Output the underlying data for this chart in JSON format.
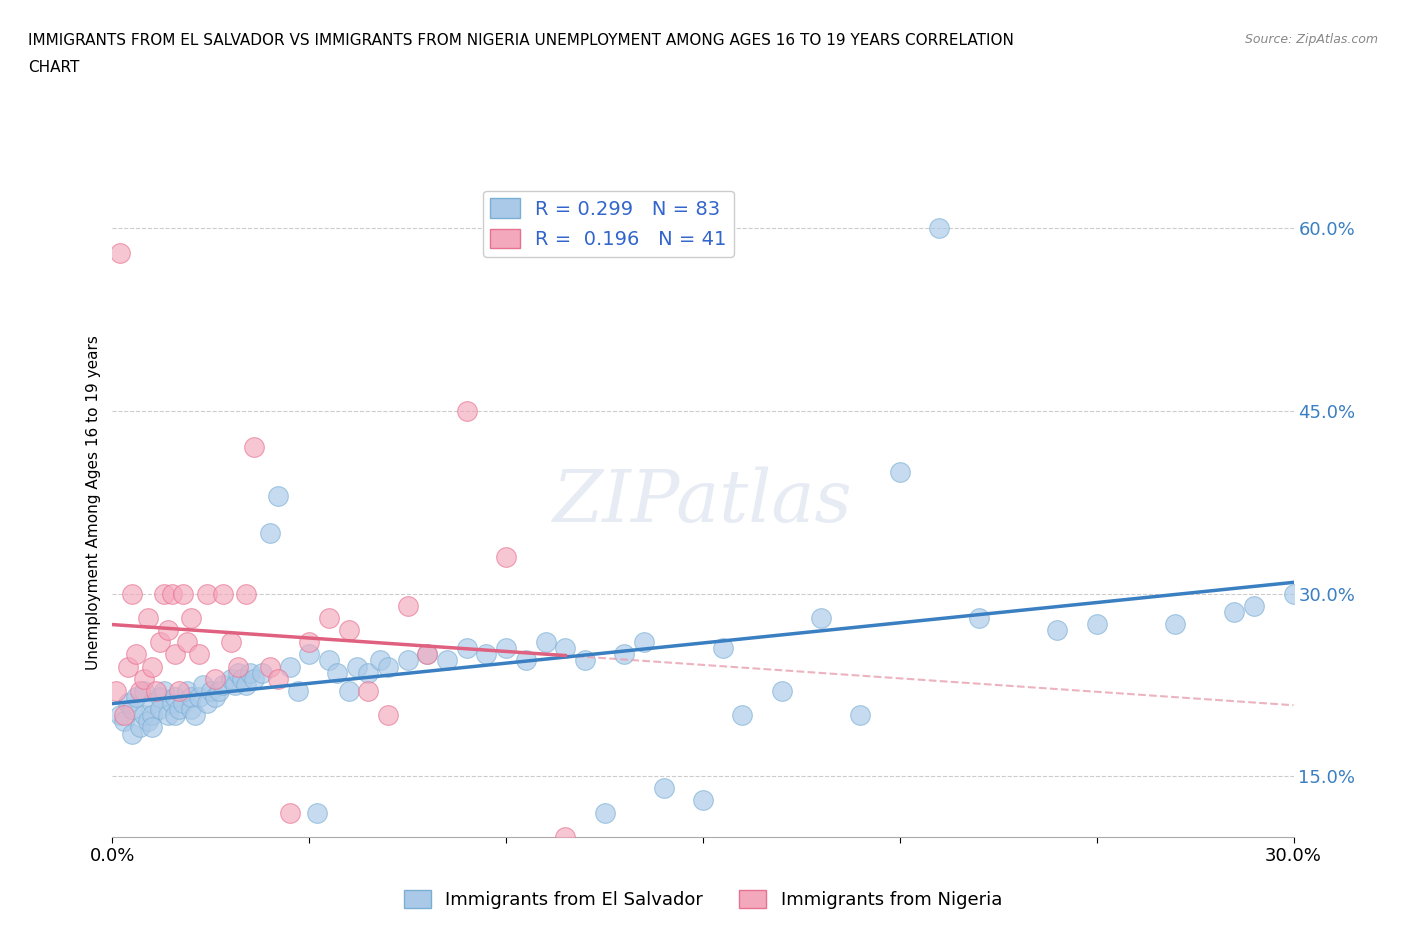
{
  "title_line1": "IMMIGRANTS FROM EL SALVADOR VS IMMIGRANTS FROM NIGERIA UNEMPLOYMENT AMONG AGES 16 TO 19 YEARS CORRELATION",
  "title_line2": "CHART",
  "source": "Source: ZipAtlas.com",
  "ylabel": "Unemployment Among Ages 16 to 19 years",
  "xlabel_salvador": "Immigrants from El Salvador",
  "xlabel_nigeria": "Immigrants from Nigeria",
  "R_salvador": 0.299,
  "N_salvador": 83,
  "R_nigeria": 0.196,
  "N_nigeria": 41,
  "color_salvador": "#aac9e8",
  "color_nigeria": "#f4a8bc",
  "edge_salvador": "#7aafd4",
  "edge_nigeria": "#e87090",
  "line_color_salvador": "#3a7fc1",
  "line_color_nigeria": "#e06080",
  "dashed_line_color": "#e8a0b0",
  "xlim": [
    0.0,
    0.3
  ],
  "ylim": [
    0.1,
    0.65
  ],
  "xticks": [
    0.0,
    0.05,
    0.1,
    0.15,
    0.2,
    0.25,
    0.3
  ],
  "xtick_labels": [
    "0.0%",
    "",
    "",
    "",
    "",
    "",
    "30.0%"
  ],
  "yticks_right": [
    0.15,
    0.3,
    0.45,
    0.6
  ],
  "watermark": "ZIPatlas",
  "salvador_x": [
    0.002,
    0.003,
    0.004,
    0.005,
    0.005,
    0.006,
    0.007,
    0.008,
    0.008,
    0.009,
    0.01,
    0.01,
    0.01,
    0.012,
    0.012,
    0.013,
    0.014,
    0.015,
    0.016,
    0.016,
    0.017,
    0.018,
    0.019,
    0.02,
    0.02,
    0.021,
    0.022,
    0.023,
    0.024,
    0.025,
    0.026,
    0.027,
    0.028,
    0.03,
    0.031,
    0.032,
    0.033,
    0.034,
    0.035,
    0.036,
    0.038,
    0.04,
    0.042,
    0.045,
    0.047,
    0.05,
    0.052,
    0.055,
    0.057,
    0.06,
    0.062,
    0.065,
    0.068,
    0.07,
    0.075,
    0.08,
    0.085,
    0.09,
    0.095,
    0.1,
    0.105,
    0.11,
    0.115,
    0.12,
    0.125,
    0.13,
    0.135,
    0.14,
    0.15,
    0.155,
    0.16,
    0.17,
    0.18,
    0.19,
    0.2,
    0.21,
    0.22,
    0.24,
    0.25,
    0.27,
    0.285,
    0.29,
    0.3
  ],
  "salvador_y": [
    0.2,
    0.195,
    0.21,
    0.185,
    0.205,
    0.215,
    0.19,
    0.2,
    0.22,
    0.195,
    0.21,
    0.2,
    0.19,
    0.215,
    0.205,
    0.22,
    0.2,
    0.21,
    0.2,
    0.215,
    0.205,
    0.21,
    0.22,
    0.205,
    0.215,
    0.2,
    0.215,
    0.225,
    0.21,
    0.22,
    0.215,
    0.22,
    0.225,
    0.23,
    0.225,
    0.235,
    0.23,
    0.225,
    0.235,
    0.23,
    0.235,
    0.35,
    0.38,
    0.24,
    0.22,
    0.25,
    0.12,
    0.245,
    0.235,
    0.22,
    0.24,
    0.235,
    0.245,
    0.24,
    0.245,
    0.25,
    0.245,
    0.255,
    0.25,
    0.255,
    0.245,
    0.26,
    0.255,
    0.245,
    0.12,
    0.25,
    0.26,
    0.14,
    0.13,
    0.255,
    0.2,
    0.22,
    0.28,
    0.2,
    0.4,
    0.6,
    0.28,
    0.27,
    0.275,
    0.275,
    0.285,
    0.29,
    0.3
  ],
  "nigeria_x": [
    0.001,
    0.002,
    0.003,
    0.004,
    0.005,
    0.006,
    0.007,
    0.008,
    0.009,
    0.01,
    0.011,
    0.012,
    0.013,
    0.014,
    0.015,
    0.016,
    0.017,
    0.018,
    0.019,
    0.02,
    0.022,
    0.024,
    0.026,
    0.028,
    0.03,
    0.032,
    0.034,
    0.036,
    0.04,
    0.042,
    0.045,
    0.05,
    0.055,
    0.06,
    0.065,
    0.07,
    0.075,
    0.08,
    0.09,
    0.1,
    0.115
  ],
  "nigeria_y": [
    0.22,
    0.58,
    0.2,
    0.24,
    0.3,
    0.25,
    0.22,
    0.23,
    0.28,
    0.24,
    0.22,
    0.26,
    0.3,
    0.27,
    0.3,
    0.25,
    0.22,
    0.3,
    0.26,
    0.28,
    0.25,
    0.3,
    0.23,
    0.3,
    0.26,
    0.24,
    0.3,
    0.42,
    0.24,
    0.23,
    0.12,
    0.26,
    0.28,
    0.27,
    0.22,
    0.2,
    0.29,
    0.25,
    0.45,
    0.33,
    0.1
  ]
}
